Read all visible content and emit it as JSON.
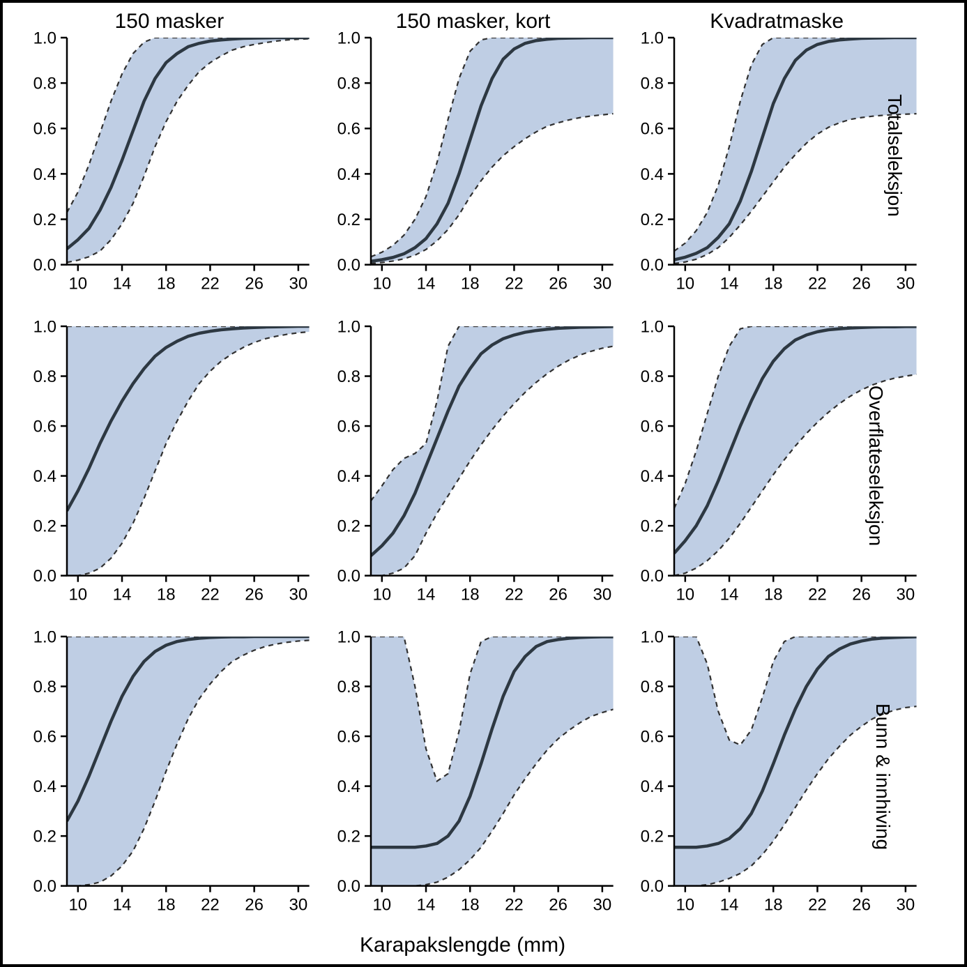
{
  "figure": {
    "background_color": "#ffffff",
    "border_color": "#000000",
    "border_width": 4,
    "xlabel": "Karapakslengde (mm)",
    "xlabel_fontsize": 30,
    "col_titles": [
      "150 masker",
      "150 masker, kort",
      "Kvadratmaske"
    ],
    "row_titles": [
      "Totalseleksjon",
      "Overflateseleksjon",
      "Bunn & innhiving"
    ],
    "title_fontsize": 30,
    "row_title_fontsize": 28,
    "panel_common": {
      "xlim": [
        9,
        31
      ],
      "ylim": [
        0.0,
        1.0
      ],
      "xticks": [
        10,
        14,
        18,
        22,
        26,
        30
      ],
      "yticks": [
        0.0,
        0.2,
        0.4,
        0.6,
        0.8,
        1.0
      ],
      "tick_fontsize": 24,
      "axis_color": "#000000",
      "axis_width": 2.5,
      "tick_len": 9,
      "mean_line_color": "#2d3842",
      "mean_line_width": 4.5,
      "ci_fill_color": "#bfcee4",
      "ci_fill_opacity": 1.0,
      "ci_border_color": "#303030",
      "ci_border_width": 2.2,
      "ci_border_dash": "7,6"
    },
    "x": [
      9,
      10,
      11,
      12,
      13,
      14,
      15,
      16,
      17,
      18,
      19,
      20,
      21,
      22,
      23,
      24,
      25,
      26,
      27,
      28,
      29,
      30,
      31
    ],
    "panels": [
      {
        "row": 0,
        "col": 0,
        "mean": [
          0.07,
          0.11,
          0.16,
          0.24,
          0.34,
          0.46,
          0.59,
          0.72,
          0.82,
          0.89,
          0.93,
          0.96,
          0.975,
          0.985,
          0.99,
          0.994,
          0.997,
          0.998,
          0.999,
          1.0,
          1.0,
          1.0,
          1.0
        ],
        "lower": [
          0.01,
          0.02,
          0.035,
          0.06,
          0.11,
          0.18,
          0.27,
          0.39,
          0.52,
          0.63,
          0.72,
          0.79,
          0.85,
          0.89,
          0.92,
          0.945,
          0.96,
          0.97,
          0.978,
          0.985,
          0.99,
          0.993,
          0.995
        ],
        "upper": [
          0.23,
          0.32,
          0.44,
          0.58,
          0.72,
          0.84,
          0.93,
          0.98,
          1.0,
          1.0,
          1.0,
          1.0,
          1.0,
          1.0,
          1.0,
          1.0,
          1.0,
          1.0,
          1.0,
          1.0,
          1.0,
          1.0,
          1.0
        ]
      },
      {
        "row": 0,
        "col": 1,
        "mean": [
          0.015,
          0.022,
          0.032,
          0.048,
          0.075,
          0.115,
          0.18,
          0.27,
          0.4,
          0.55,
          0.7,
          0.82,
          0.905,
          0.95,
          0.975,
          0.987,
          0.993,
          0.997,
          0.998,
          0.999,
          1.0,
          1.0,
          1.0
        ],
        "lower": [
          0.005,
          0.01,
          0.016,
          0.026,
          0.042,
          0.067,
          0.105,
          0.155,
          0.22,
          0.3,
          0.37,
          0.43,
          0.48,
          0.52,
          0.555,
          0.585,
          0.61,
          0.625,
          0.638,
          0.648,
          0.655,
          0.66,
          0.665
        ],
        "upper": [
          0.035,
          0.055,
          0.085,
          0.13,
          0.2,
          0.3,
          0.45,
          0.64,
          0.82,
          0.94,
          0.99,
          1.0,
          1.0,
          1.0,
          1.0,
          1.0,
          1.0,
          1.0,
          1.0,
          1.0,
          1.0,
          1.0,
          1.0
        ]
      },
      {
        "row": 0,
        "col": 2,
        "mean": [
          0.022,
          0.033,
          0.05,
          0.075,
          0.12,
          0.18,
          0.28,
          0.41,
          0.56,
          0.71,
          0.82,
          0.9,
          0.945,
          0.97,
          0.983,
          0.99,
          0.994,
          0.997,
          0.998,
          0.999,
          1.0,
          1.0,
          1.0
        ],
        "lower": [
          0.005,
          0.012,
          0.024,
          0.045,
          0.075,
          0.12,
          0.175,
          0.235,
          0.3,
          0.365,
          0.43,
          0.485,
          0.535,
          0.575,
          0.605,
          0.625,
          0.64,
          0.648,
          0.654,
          0.658,
          0.661,
          0.663,
          0.665
        ],
        "upper": [
          0.06,
          0.095,
          0.15,
          0.23,
          0.35,
          0.52,
          0.72,
          0.88,
          0.97,
          1.0,
          1.0,
          1.0,
          1.0,
          1.0,
          1.0,
          1.0,
          1.0,
          1.0,
          1.0,
          1.0,
          1.0,
          1.0,
          1.0
        ]
      },
      {
        "row": 1,
        "col": 0,
        "mean": [
          0.26,
          0.34,
          0.43,
          0.53,
          0.62,
          0.7,
          0.77,
          0.83,
          0.88,
          0.915,
          0.94,
          0.96,
          0.972,
          0.98,
          0.986,
          0.99,
          0.993,
          0.995,
          0.997,
          0.998,
          0.999,
          1.0,
          1.0
        ],
        "lower": [
          0.0,
          0.0,
          0.01,
          0.03,
          0.07,
          0.13,
          0.21,
          0.31,
          0.42,
          0.53,
          0.62,
          0.7,
          0.77,
          0.82,
          0.86,
          0.89,
          0.915,
          0.935,
          0.95,
          0.96,
          0.968,
          0.974,
          0.978
        ],
        "upper": [
          1.0,
          1.0,
          1.0,
          1.0,
          1.0,
          1.0,
          1.0,
          1.0,
          1.0,
          1.0,
          1.0,
          1.0,
          1.0,
          1.0,
          1.0,
          1.0,
          1.0,
          1.0,
          1.0,
          1.0,
          1.0,
          1.0,
          1.0
        ]
      },
      {
        "row": 1,
        "col": 1,
        "mean": [
          0.08,
          0.12,
          0.17,
          0.24,
          0.33,
          0.44,
          0.55,
          0.66,
          0.76,
          0.83,
          0.89,
          0.925,
          0.95,
          0.965,
          0.976,
          0.983,
          0.988,
          0.992,
          0.994,
          0.996,
          0.997,
          0.998,
          0.999
        ],
        "lower": [
          0.0,
          0.0,
          0.01,
          0.03,
          0.08,
          0.17,
          0.25,
          0.32,
          0.39,
          0.46,
          0.525,
          0.585,
          0.64,
          0.69,
          0.735,
          0.775,
          0.81,
          0.84,
          0.865,
          0.885,
          0.9,
          0.912,
          0.92
        ],
        "upper": [
          0.3,
          0.36,
          0.425,
          0.47,
          0.49,
          0.53,
          0.7,
          0.92,
          1.0,
          1.0,
          1.0,
          1.0,
          1.0,
          1.0,
          1.0,
          1.0,
          1.0,
          1.0,
          1.0,
          1.0,
          1.0,
          1.0,
          1.0
        ]
      },
      {
        "row": 1,
        "col": 2,
        "mean": [
          0.09,
          0.14,
          0.2,
          0.28,
          0.38,
          0.49,
          0.6,
          0.7,
          0.79,
          0.86,
          0.91,
          0.945,
          0.965,
          0.978,
          0.986,
          0.99,
          0.993,
          0.995,
          0.997,
          0.998,
          0.998,
          0.999,
          0.999
        ],
        "lower": [
          0.0,
          0.01,
          0.03,
          0.06,
          0.1,
          0.15,
          0.21,
          0.275,
          0.34,
          0.405,
          0.465,
          0.52,
          0.57,
          0.615,
          0.655,
          0.69,
          0.72,
          0.745,
          0.765,
          0.78,
          0.792,
          0.8,
          0.807
        ],
        "upper": [
          0.27,
          0.37,
          0.5,
          0.65,
          0.8,
          0.92,
          0.99,
          1.0,
          1.0,
          1.0,
          1.0,
          1.0,
          1.0,
          1.0,
          1.0,
          1.0,
          1.0,
          1.0,
          1.0,
          1.0,
          1.0,
          1.0,
          1.0
        ]
      },
      {
        "row": 2,
        "col": 0,
        "mean": [
          0.26,
          0.34,
          0.44,
          0.55,
          0.66,
          0.76,
          0.84,
          0.9,
          0.94,
          0.965,
          0.98,
          0.988,
          0.993,
          0.996,
          0.998,
          0.999,
          0.999,
          1.0,
          1.0,
          1.0,
          1.0,
          1.0,
          1.0
        ],
        "lower": [
          0.0,
          0.0,
          0.005,
          0.015,
          0.04,
          0.08,
          0.14,
          0.23,
          0.34,
          0.46,
          0.57,
          0.67,
          0.75,
          0.81,
          0.86,
          0.9,
          0.925,
          0.945,
          0.96,
          0.97,
          0.977,
          0.982,
          0.985
        ],
        "upper": [
          1.0,
          1.0,
          1.0,
          1.0,
          1.0,
          1.0,
          1.0,
          1.0,
          1.0,
          1.0,
          1.0,
          1.0,
          1.0,
          1.0,
          1.0,
          1.0,
          1.0,
          1.0,
          1.0,
          1.0,
          1.0,
          1.0,
          1.0
        ]
      },
      {
        "row": 2,
        "col": 1,
        "mean": [
          0.155,
          0.155,
          0.155,
          0.155,
          0.155,
          0.16,
          0.17,
          0.2,
          0.26,
          0.36,
          0.49,
          0.63,
          0.76,
          0.86,
          0.92,
          0.96,
          0.98,
          0.988,
          0.993,
          0.996,
          0.998,
          0.999,
          0.999
        ],
        "lower": [
          0.0,
          0.0,
          0.0,
          0.0,
          0.0,
          0.005,
          0.015,
          0.035,
          0.065,
          0.105,
          0.155,
          0.22,
          0.29,
          0.365,
          0.43,
          0.49,
          0.545,
          0.59,
          0.625,
          0.655,
          0.68,
          0.695,
          0.708
        ],
        "upper": [
          1.0,
          1.0,
          1.0,
          1.0,
          0.8,
          0.55,
          0.42,
          0.45,
          0.62,
          0.85,
          0.98,
          1.0,
          1.0,
          1.0,
          1.0,
          1.0,
          1.0,
          1.0,
          1.0,
          1.0,
          1.0,
          1.0,
          1.0
        ]
      },
      {
        "row": 2,
        "col": 2,
        "mean": [
          0.155,
          0.155,
          0.155,
          0.16,
          0.17,
          0.19,
          0.23,
          0.29,
          0.38,
          0.49,
          0.605,
          0.71,
          0.8,
          0.87,
          0.92,
          0.95,
          0.97,
          0.982,
          0.99,
          0.994,
          0.996,
          0.998,
          0.999
        ],
        "lower": [
          0.0,
          0.0,
          0.0,
          0.005,
          0.015,
          0.03,
          0.05,
          0.08,
          0.125,
          0.18,
          0.245,
          0.315,
          0.385,
          0.45,
          0.51,
          0.56,
          0.605,
          0.64,
          0.67,
          0.69,
          0.705,
          0.715,
          0.72
        ],
        "upper": [
          1.0,
          1.0,
          1.0,
          0.89,
          0.7,
          0.585,
          0.565,
          0.625,
          0.755,
          0.9,
          0.98,
          1.0,
          1.0,
          1.0,
          1.0,
          1.0,
          1.0,
          1.0,
          1.0,
          1.0,
          1.0,
          1.0,
          1.0
        ]
      }
    ]
  }
}
